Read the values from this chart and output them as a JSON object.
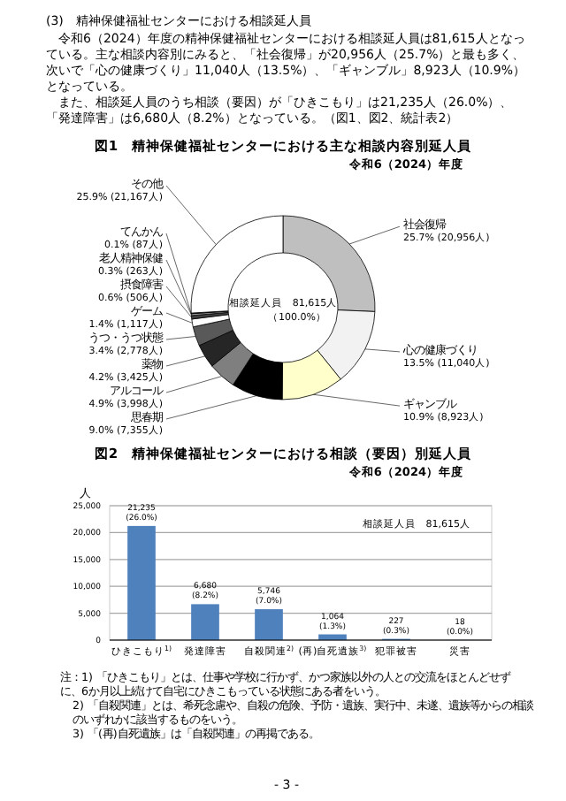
{
  "chart_data": [
    {
      "type": "donut",
      "title": "図1　精神保健福祉センターにおける主な相談内容別延人員",
      "subtitle": "令和6（2024）年度",
      "categories": [
        "社会復帰",
        "心の健康づくり",
        "ギャンブル",
        "思春期",
        "アルコール",
        "薬物",
        "うつ・うつ状態",
        "ゲーム",
        "摂食障害",
        "老人精神保健",
        "てんかん",
        "その他"
      ],
      "values": [
        20956,
        11040,
        8923,
        7355,
        3998,
        3425,
        2778,
        1117,
        506,
        263,
        87,
        21167
      ],
      "colors": [
        "#bfbfbf",
        "#f2f2f2",
        "#ffffcc",
        "#000000",
        "#7f7f7f",
        "#262626",
        "#595959",
        "#ffffff",
        "#404040",
        "#a6a6a6",
        "#737373",
        "#ffffff"
      ],
      "value_labels": [
        "25.7%\n(20,956人)",
        "13.5%\n(11,040人)",
        "10.9%\n(8,923人)",
        "9.0%\n(7,355人)",
        "4.9%\n(3,998人)",
        "4.2%\n(3,425人)",
        "3.4%\n(2,778人)",
        "1.4%\n(1,117人)",
        "0.6%\n(506人)",
        "0.3%\n(263人)",
        "0.1%\n(87人)",
        "25.9%\n(21,167人)"
      ],
      "annotations": [
        "(3)　精神保健福祉センターにおける相談延人員",
        "令和6（2024）年度の精神保健福祉センターにおける相談延人員は81,615人となっている。主な相談内容別にみると、「社会復帰」が20,956人（25.7%）と最も多く、次いで「心の健康づくり」11,040人（13.5%）、「ギャンブル」8,923人（10.9%）となっている。",
        "また、相談延人員のうち相談（要因）が「ひきこもり」は21,235人（26.0%）、「発達障害」は6,680人（8.2%）となっている。（図1、図2、統計表2）",
        "相談延人員　81,615人",
        "（100.0%）"
      ]
    },
    {
      "type": "bar",
      "title": "図2　精神保健福祉センターにおける相談（要因）別延人員",
      "subtitle": "令和6（2024）年度",
      "ylabel": "人",
      "categories": [
        "ひきこもり$^{1)}$",
        "発達障害",
        "自殺関連$^{2)}$",
        "(再)自死遺族$^{3)}$",
        "犯罪被害",
        "災害"
      ],
      "values": [
        21235,
        6680,
        5746,
        1064,
        227,
        18
      ],
      "value_labels": [
        "21,235\n(26.0%)",
        "6,680\n(8.2%)",
        "5,746\n(7.0%)",
        "1,064\n(1.3%)",
        "227\n(0.3%)",
        "18\n(0.0%)"
      ],
      "color": "#4f81bd",
      "ylim": [
        0,
        25000
      ],
      "yticks": [
        0,
        {
          "value": 5000,
          "label": "5,000"
        },
        {
          "value": 10000,
          "label": "10,000"
        },
        {
          "value": 15000,
          "label": "15,000"
        },
        {
          "value": 20000,
          "label": "20,000"
        },
        {
          "value": 25000,
          "label": "25,000"
        }
      ],
      "grid": "y",
      "annotations": [
        "相談延人員　81,615人",
        "注：1) 「ひきこもり」とは、仕事や学校に行かず、かつ家族以外の人との交流をほとんどせずに、6か月以上続けて自宅にひきこもっている状態にある者をいう。",
        "2) 「自殺関連」とは、希死念慮や、自殺の危険、予防・遺族、実行中、未遂、遺族等からの相談のいずれかに該当するものをいう。",
        "3) 「(再)自死遺族」は「自殺関連」の再掲である。",
        "- 3 -"
      ]
    }
  ]
}
